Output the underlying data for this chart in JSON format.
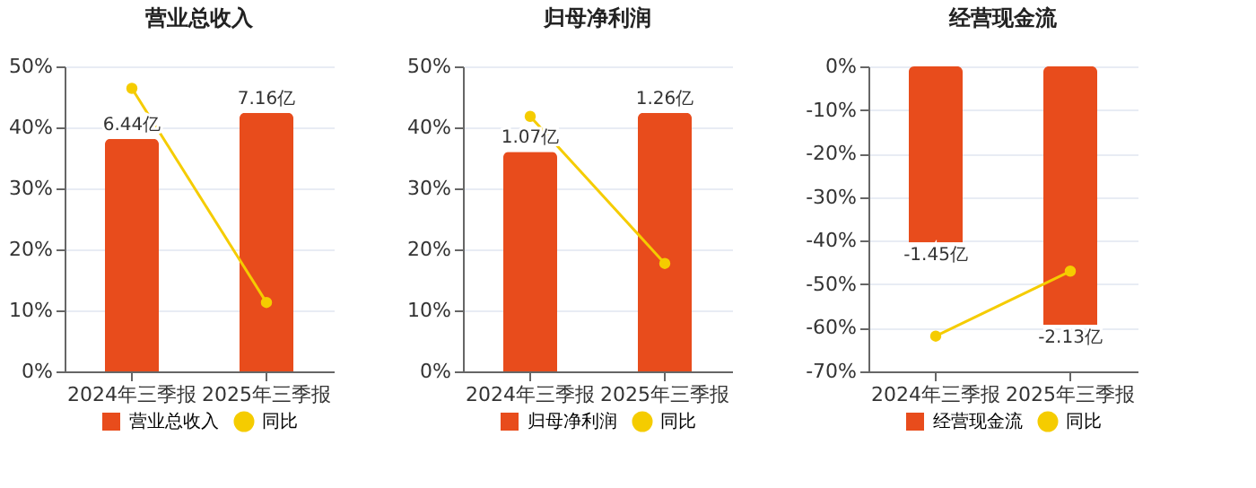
{
  "chart_data": [
    {
      "type": "bar",
      "title": "营业总收入",
      "categories": [
        "2024年三季报",
        "2025年三季报"
      ],
      "ylim": [
        0,
        50
      ],
      "yticks": [
        {
          "value": 0,
          "label": "0%"
        },
        {
          "value": 10,
          "label": "10%"
        },
        {
          "value": 20,
          "label": "20%"
        },
        {
          "value": 30,
          "label": "30%"
        },
        {
          "value": 40,
          "label": "40%"
        },
        {
          "value": 50,
          "label": "50%"
        }
      ],
      "grid": "y",
      "legend": "bottom",
      "marker": "circle",
      "tick_labels": "xy",
      "series": [
        {
          "name": "营业总收入",
          "axis": "y2",
          "color": "#e84c1c",
          "values": [
            6.44,
            7.16
          ],
          "value_labels": [
            "6.44亿",
            "7.16亿"
          ]
        },
        {
          "name": "同比",
          "type": "line",
          "color": "#f5cc00",
          "values": [
            46.4,
            11.3
          ]
        }
      ]
    },
    {
      "type": "bar",
      "title": "归母净利润",
      "categories": [
        "2024年三季报",
        "2025年三季报"
      ],
      "ylim": [
        0,
        50
      ],
      "yticks": [
        {
          "value": 0,
          "label": "0%"
        },
        {
          "value": 10,
          "label": "10%"
        },
        {
          "value": 20,
          "label": "20%"
        },
        {
          "value": 30,
          "label": "30%"
        },
        {
          "value": 40,
          "label": "40%"
        },
        {
          "value": 50,
          "label": "50%"
        }
      ],
      "grid": "y",
      "legend": "bottom",
      "marker": "circle",
      "tick_labels": "xy",
      "series": [
        {
          "name": "归母净利润",
          "axis": "y2",
          "color": "#e84c1c",
          "values": [
            1.07,
            1.26
          ],
          "value_labels": [
            "1.07亿",
            "1.26亿"
          ]
        },
        {
          "name": "同比",
          "type": "line",
          "color": "#f5cc00",
          "values": [
            41.8,
            17.7
          ]
        }
      ]
    },
    {
      "type": "bar",
      "title": "经营现金流",
      "categories": [
        "2024年三季报",
        "2025年三季报"
      ],
      "ylim": [
        -70,
        0
      ],
      "yticks": [
        {
          "value": -70,
          "label": "-70%"
        },
        {
          "value": -60,
          "label": "-60%"
        },
        {
          "value": -50,
          "label": "-50%"
        },
        {
          "value": -40,
          "label": "-40%"
        },
        {
          "value": -30,
          "label": "-30%"
        },
        {
          "value": -20,
          "label": "-20%"
        },
        {
          "value": -10,
          "label": "-10%"
        },
        {
          "value": 0,
          "label": "0%"
        }
      ],
      "grid": "y",
      "legend": "bottom",
      "marker": "circle",
      "tick_labels": "xy",
      "series": [
        {
          "name": "经营现金流",
          "axis": "y2",
          "color": "#e84c1c",
          "values": [
            -1.45,
            -2.13
          ],
          "value_labels": [
            "-1.45亿",
            "-2.13亿"
          ]
        },
        {
          "name": "同比",
          "type": "line",
          "color": "#f5cc00",
          "values": [
            -61.9,
            -47.0
          ]
        }
      ]
    }
  ]
}
